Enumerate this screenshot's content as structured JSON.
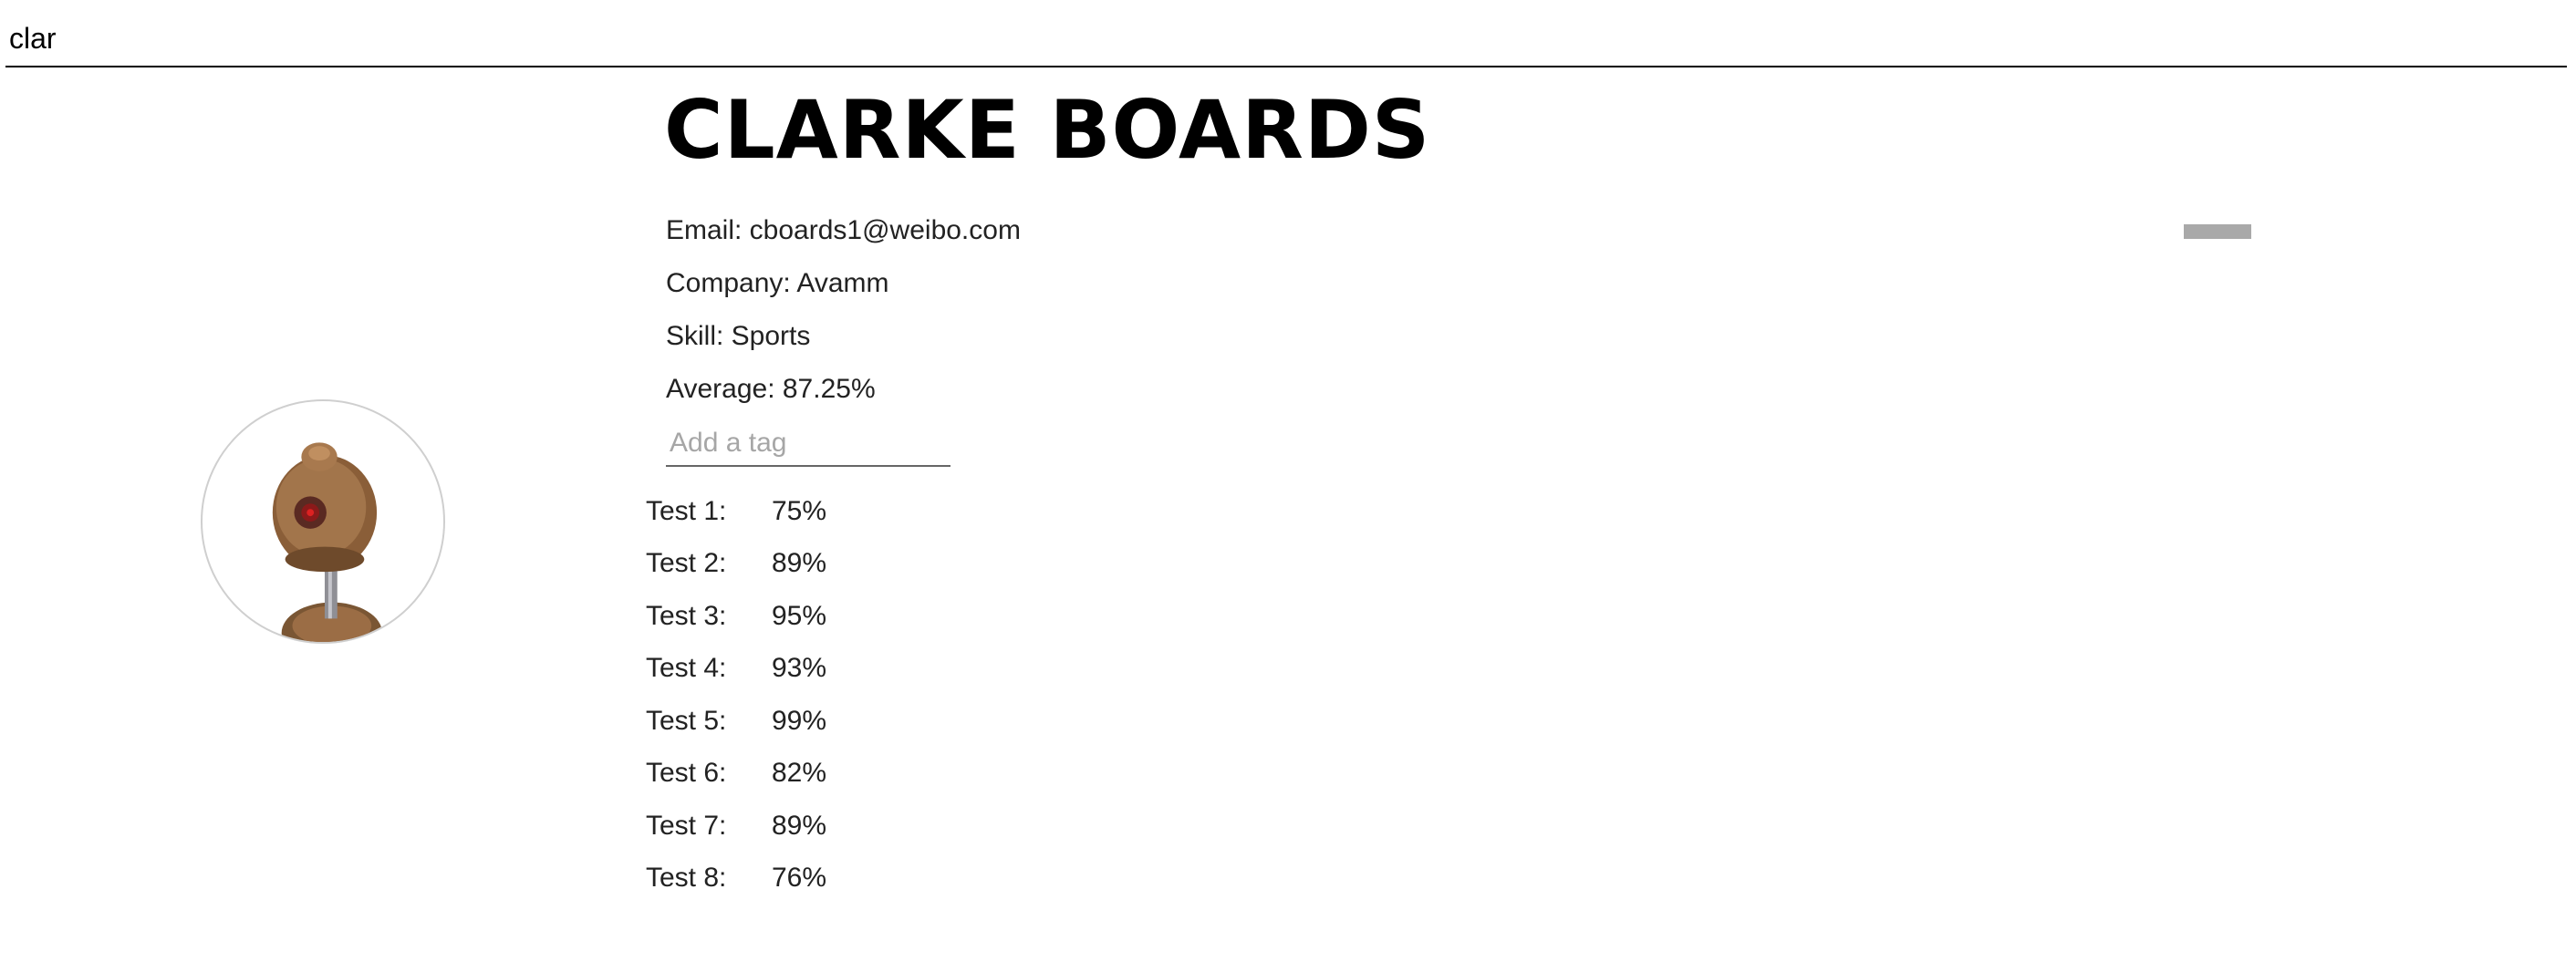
{
  "search": {
    "value": "clar",
    "placeholder": ""
  },
  "student": {
    "name": "CLARKE BOARDS",
    "avatar_icon": "robot-avatar-icon",
    "email": "Email: cboards1@weibo.com",
    "company": "Company: Avamm",
    "skill": "Skill: Sports",
    "average": "Average: 87.25%"
  },
  "tag_input": {
    "value": "",
    "placeholder": "Add a tag"
  },
  "tests": [
    {
      "label": "Test 1:",
      "score": "75%"
    },
    {
      "label": "Test 2:",
      "score": "89%"
    },
    {
      "label": "Test 3:",
      "score": "95%"
    },
    {
      "label": "Test 4:",
      "score": "93%"
    },
    {
      "label": "Test 5:",
      "score": "99%"
    },
    {
      "label": "Test 6:",
      "score": "82%"
    },
    {
      "label": "Test 7:",
      "score": "89%"
    },
    {
      "label": "Test 8:",
      "score": "76%"
    }
  ],
  "expand_button": {
    "icon": "minus-icon",
    "color": "#a9a9a9"
  }
}
